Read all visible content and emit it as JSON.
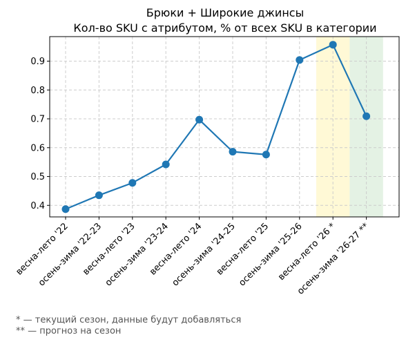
{
  "chart_data": {
    "type": "line",
    "title_line1": "Брюки + Широкие джинсы",
    "title_line2": "Кол-во SKU с атрибутом, % от всех SKU в категории",
    "xlabel": "",
    "ylabel": "",
    "categories": [
      "весна-лето '22",
      "осень-зима '22-23",
      "весна-лето '23",
      "осень-зима '23-24",
      "весна-лето '24",
      "осень-зима '24-25",
      "весна-лето '25",
      "осень-зима '25-26",
      "весна-лето '26 *",
      "осень-зима '26-27 **"
    ],
    "series": [
      {
        "values": [
          0.387,
          0.435,
          0.478,
          0.542,
          0.697,
          0.586,
          0.576,
          0.904,
          0.957,
          0.709
        ],
        "color": "#1f77b4"
      }
    ],
    "yticks": [
      "0.4",
      "0.5",
      "0.6",
      "0.7",
      "0.8",
      "0.9"
    ],
    "ytick_values": [
      0.4,
      0.5,
      0.6,
      0.7,
      0.8,
      0.9
    ],
    "ylim": [
      0.36,
      0.985
    ],
    "grid": true,
    "highlights": [
      {
        "category_index": 8,
        "color": "#fff9d6"
      },
      {
        "category_index": 9,
        "color": "#e4f2e4"
      }
    ]
  },
  "footnotes": {
    "line1": "* — текущий сезон, данные будут добавляться",
    "line2": "** — прогноз на сезон"
  }
}
